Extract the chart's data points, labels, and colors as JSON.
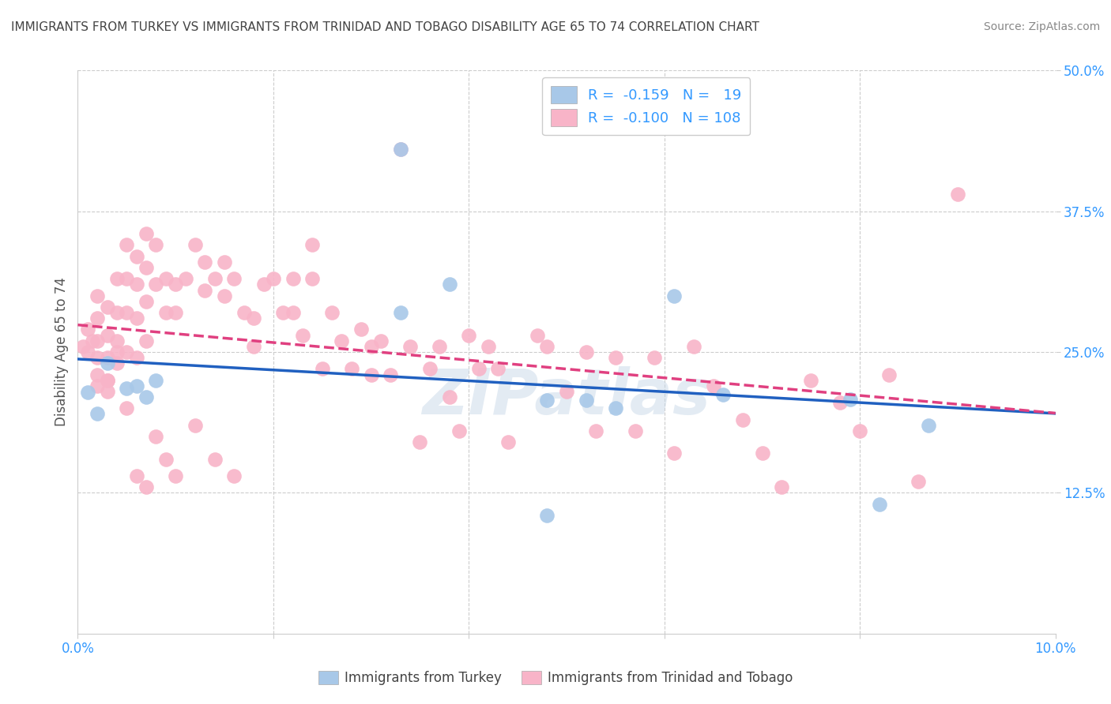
{
  "title": "IMMIGRANTS FROM TURKEY VS IMMIGRANTS FROM TRINIDAD AND TOBAGO DISABILITY AGE 65 TO 74 CORRELATION CHART",
  "source": "Source: ZipAtlas.com",
  "ylabel": "Disability Age 65 to 74",
  "xlim": [
    0.0,
    0.1
  ],
  "ylim": [
    0.0,
    0.5
  ],
  "yticks": [
    0.125,
    0.25,
    0.375,
    0.5
  ],
  "ytick_labels": [
    "12.5%",
    "25.0%",
    "37.5%",
    "50.0%"
  ],
  "xticks": [
    0.0,
    0.02,
    0.04,
    0.06,
    0.08,
    0.1
  ],
  "xtick_labels": [
    "0.0%",
    "",
    "",
    "",
    "",
    "10.0%"
  ],
  "turkey_color": "#a8c8e8",
  "trinidad_color": "#f8b4c8",
  "turkey_line_color": "#2060c0",
  "trinidad_line_color": "#e04080",
  "turkey_R": -0.159,
  "turkey_N": 19,
  "trinidad_R": -0.1,
  "trinidad_N": 108,
  "watermark": "ZIPatlas",
  "background_color": "#ffffff",
  "grid_color": "#cccccc",
  "turkey_x": [
    0.001,
    0.002,
    0.003,
    0.005,
    0.006,
    0.007,
    0.008,
    0.033,
    0.033,
    0.038,
    0.048,
    0.048,
    0.052,
    0.055,
    0.061,
    0.066,
    0.079,
    0.082,
    0.087
  ],
  "turkey_y": [
    0.214,
    0.195,
    0.24,
    0.218,
    0.22,
    0.21,
    0.225,
    0.285,
    0.43,
    0.31,
    0.207,
    0.105,
    0.207,
    0.2,
    0.3,
    0.212,
    0.208,
    0.115,
    0.185
  ],
  "trinidad_x": [
    0.0005,
    0.001,
    0.001,
    0.0015,
    0.002,
    0.002,
    0.002,
    0.002,
    0.002,
    0.003,
    0.003,
    0.003,
    0.003,
    0.003,
    0.004,
    0.004,
    0.004,
    0.004,
    0.005,
    0.005,
    0.005,
    0.005,
    0.006,
    0.006,
    0.006,
    0.006,
    0.007,
    0.007,
    0.007,
    0.007,
    0.008,
    0.008,
    0.009,
    0.009,
    0.01,
    0.01,
    0.011,
    0.012,
    0.013,
    0.013,
    0.014,
    0.015,
    0.015,
    0.016,
    0.017,
    0.018,
    0.018,
    0.019,
    0.02,
    0.021,
    0.022,
    0.022,
    0.023,
    0.024,
    0.024,
    0.025,
    0.026,
    0.027,
    0.028,
    0.029,
    0.03,
    0.03,
    0.031,
    0.032,
    0.033,
    0.034,
    0.035,
    0.036,
    0.037,
    0.038,
    0.039,
    0.04,
    0.041,
    0.042,
    0.043,
    0.044,
    0.047,
    0.048,
    0.05,
    0.052,
    0.053,
    0.055,
    0.057,
    0.059,
    0.061,
    0.063,
    0.065,
    0.068,
    0.07,
    0.072,
    0.075,
    0.078,
    0.08,
    0.083,
    0.086,
    0.09,
    0.002,
    0.003,
    0.004,
    0.005,
    0.006,
    0.007,
    0.008,
    0.009,
    0.01,
    0.012,
    0.014,
    0.016
  ],
  "trinidad_y": [
    0.255,
    0.27,
    0.25,
    0.26,
    0.3,
    0.28,
    0.26,
    0.245,
    0.23,
    0.29,
    0.265,
    0.245,
    0.225,
    0.215,
    0.315,
    0.285,
    0.26,
    0.24,
    0.345,
    0.315,
    0.285,
    0.25,
    0.335,
    0.31,
    0.28,
    0.245,
    0.355,
    0.325,
    0.295,
    0.26,
    0.345,
    0.31,
    0.315,
    0.285,
    0.31,
    0.285,
    0.315,
    0.345,
    0.33,
    0.305,
    0.315,
    0.33,
    0.3,
    0.315,
    0.285,
    0.28,
    0.255,
    0.31,
    0.315,
    0.285,
    0.315,
    0.285,
    0.265,
    0.345,
    0.315,
    0.235,
    0.285,
    0.26,
    0.235,
    0.27,
    0.255,
    0.23,
    0.26,
    0.23,
    0.43,
    0.255,
    0.17,
    0.235,
    0.255,
    0.21,
    0.18,
    0.265,
    0.235,
    0.255,
    0.235,
    0.17,
    0.265,
    0.255,
    0.215,
    0.25,
    0.18,
    0.245,
    0.18,
    0.245,
    0.16,
    0.255,
    0.22,
    0.19,
    0.16,
    0.13,
    0.225,
    0.205,
    0.18,
    0.23,
    0.135,
    0.39,
    0.22,
    0.225,
    0.25,
    0.2,
    0.14,
    0.13,
    0.175,
    0.155,
    0.14,
    0.185,
    0.155,
    0.14
  ]
}
